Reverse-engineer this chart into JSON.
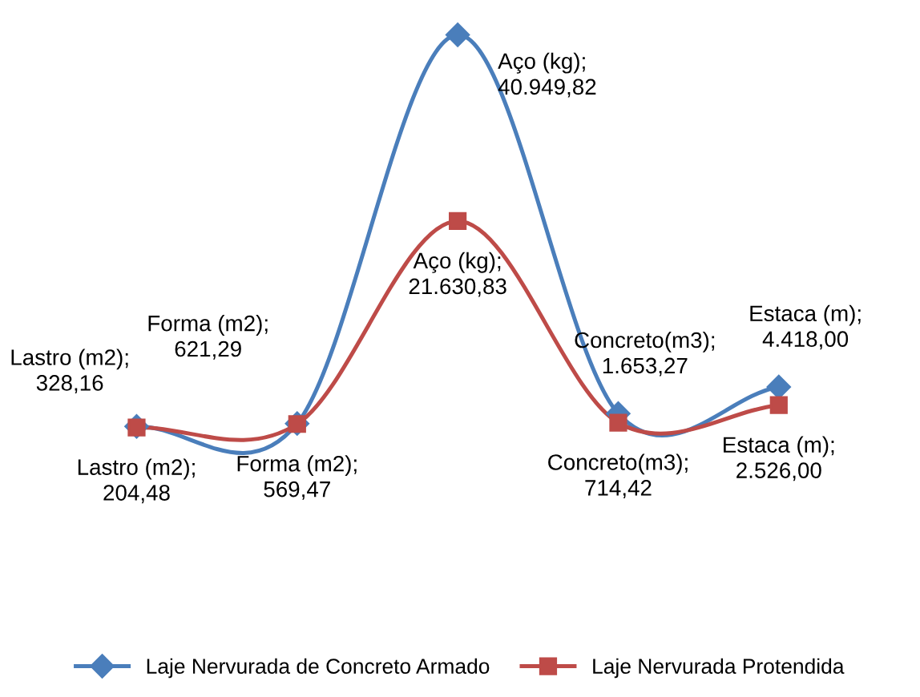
{
  "chart_data": {
    "type": "line",
    "categories": [
      null,
      null,
      null,
      null,
      null
    ],
    "legend": "bottom",
    "series": [
      {
        "name": "Laje Nervurada de Concreto Armado",
        "color": "#4a7ebb",
        "marker": "diamond",
        "values": [
          328.16,
          621.29,
          40949.82,
          1653.27,
          4418.0
        ],
        "value_labels": [
          "Lastro (m2);\n328,16",
          "Forma (m2);\n621,29",
          "Aço (kg);\n40.949,82",
          "Concreto(m3);\n1.653,27",
          "Estaca (m);\n4.418,00"
        ]
      },
      {
        "name": "Laje Nervurada Protendida",
        "color": "#be4b48",
        "marker": "square",
        "values": [
          204.48,
          569.47,
          21630.83,
          714.42,
          2526.0
        ],
        "value_labels": [
          "Lastro (m2);\n204,48",
          "Forma (m2);\n569,47",
          "Aço (kg);\n21.630,83",
          "Concreto(m3);\n714,42",
          "Estaca (m);\n2.526,00"
        ]
      }
    ]
  }
}
